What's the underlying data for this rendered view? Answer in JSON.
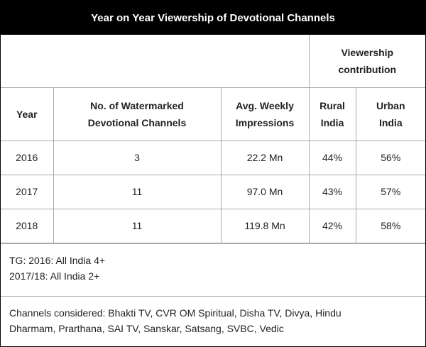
{
  "title": "Year on Year Viewership of Devotional Channels",
  "table": {
    "group_header": [
      "Viewership",
      "contribution"
    ],
    "headers": {
      "year": [
        "Year"
      ],
      "channels": [
        "No. of Watermarked",
        "Devotional Channels"
      ],
      "impressions": [
        "Avg. Weekly",
        "Impressions"
      ],
      "rural": [
        "Rural",
        "India"
      ],
      "urban": [
        "Urban",
        "India"
      ]
    },
    "rows": [
      {
        "year": "2016",
        "channels": "3",
        "impressions": "22.2 Mn",
        "rural": "44%",
        "urban": "56%"
      },
      {
        "year": "2017",
        "channels": "11",
        "impressions": "97.0 Mn",
        "rural": "43%",
        "urban": "57%"
      },
      {
        "year": "2018",
        "channels": "11",
        "impressions": "119.8 Mn",
        "rural": "42%",
        "urban": "58%"
      }
    ]
  },
  "notes": {
    "tg_line1": "TG: 2016: All India 4+",
    "tg_line2": "2017/18: All India 2+"
  },
  "channels_note": {
    "line1": "Channels considered: Bhakti TV, CVR OM Spiritual, Disha TV, Divya, Hindu",
    "line2": "Dharmam, Prarthana, SAI TV, Sanskar, Satsang, SVBC, Vedic"
  }
}
